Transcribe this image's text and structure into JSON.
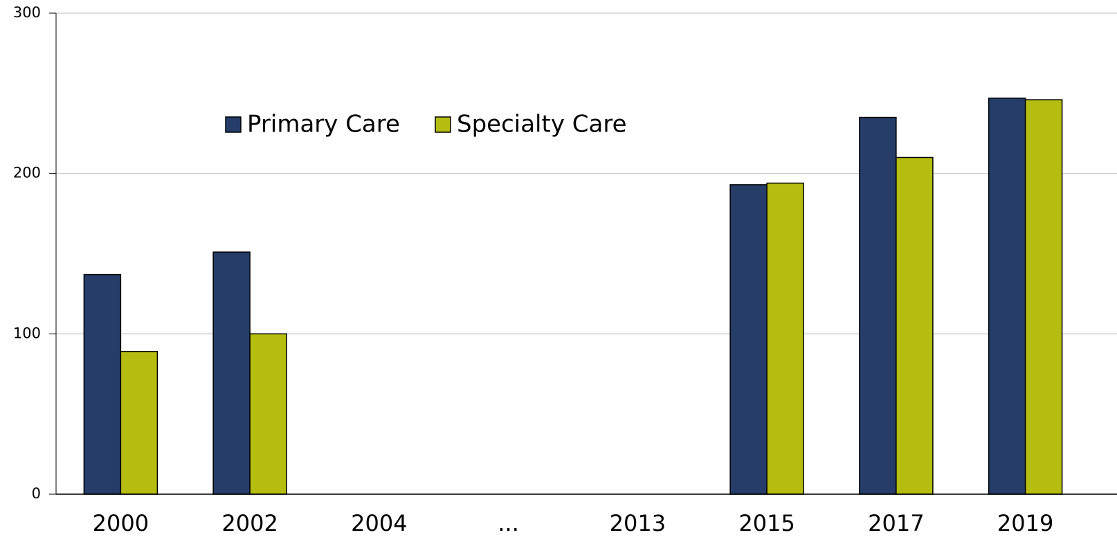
{
  "chart_data": {
    "type": "bar",
    "categories": [
      "2000",
      "2002",
      "2004",
      "...",
      "2013",
      "2015",
      "2017",
      "2019"
    ],
    "series": [
      {
        "name": "Primary Care",
        "color": "#253d68",
        "values": [
          137,
          151,
          null,
          null,
          null,
          193,
          235,
          247
        ]
      },
      {
        "name": "Specialty Care",
        "color": "#b5be10",
        "values": [
          89,
          100,
          null,
          null,
          null,
          194,
          210,
          246
        ]
      }
    ],
    "ylim": [
      0,
      300
    ],
    "yticks": [
      0,
      100,
      200,
      300
    ],
    "grid": true,
    "legend": "top-left"
  }
}
